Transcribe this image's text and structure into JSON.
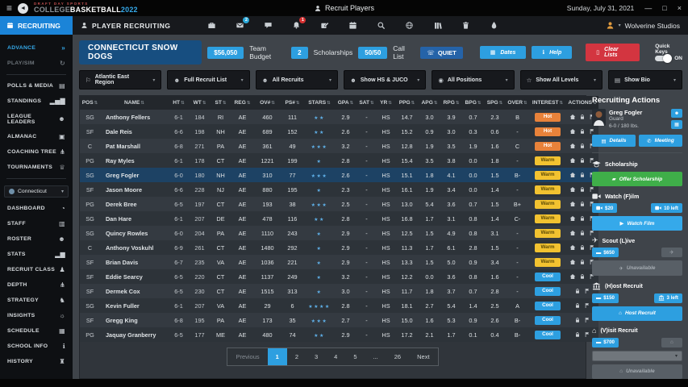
{
  "titlebar": {
    "logo_small": "DRAFT DAY SPORTS",
    "logo_college": "COLLEGE",
    "logo_basketball": "BASKETBALL",
    "logo_year": "2022",
    "page_title": "Recruit Players",
    "date": "Sunday, July 31, 2021"
  },
  "appbar": {
    "nav_label": "RECRUITING",
    "page_label": "PLAYER RECRUITING",
    "mail_badge": "2",
    "bell_badge": "1",
    "studio": "Wolverine Studios",
    "icon_names": [
      "briefcase-icon",
      "mail-icon",
      "chat-icon",
      "bell-icon",
      "compose-icon",
      "calendar-icon",
      "search-icon",
      "globe-icon",
      "books-icon",
      "trash-icon",
      "droplet-icon"
    ]
  },
  "sidebar": {
    "top_items": [
      {
        "id": "advance",
        "label": "ADVANCE",
        "glyph": "»",
        "state": "active"
      },
      {
        "id": "play-sim",
        "label": "PLAY/SIM",
        "glyph": "↻",
        "state": "disabled"
      },
      {
        "divider": true
      },
      {
        "id": "polls-media",
        "label": "POLLS & MEDIA",
        "glyph": "▤"
      },
      {
        "id": "standings",
        "label": "STANDINGS",
        "glyph": "▂▅▇"
      },
      {
        "id": "league-leaders",
        "label": "LEAGUE LEADERS",
        "glyph": "☻"
      },
      {
        "id": "almanac",
        "label": "ALMANAC",
        "glyph": "▣"
      },
      {
        "id": "coaching-tree",
        "label": "COACHING TREE",
        "glyph": "⋔"
      },
      {
        "id": "tournaments",
        "label": "TOURNAMENTS",
        "glyph": "♕"
      },
      {
        "divider": true
      }
    ],
    "team_select_label": "Connecticut",
    "bottom_items": [
      {
        "id": "dashboard",
        "label": "DASHBOARD",
        "glyph": "◔"
      },
      {
        "id": "staff",
        "label": "STAFF",
        "glyph": "▥"
      },
      {
        "id": "roster",
        "label": "ROSTER",
        "glyph": "☻"
      },
      {
        "id": "stats",
        "label": "STATS",
        "glyph": "▂▆"
      },
      {
        "id": "recruit-class",
        "label": "RECRUIT CLASS",
        "glyph": "♟"
      },
      {
        "id": "depth",
        "label": "DEPTH",
        "glyph": "⋔"
      },
      {
        "id": "strategy",
        "label": "STRATEGY",
        "glyph": "♞"
      },
      {
        "id": "insights",
        "label": "INSIGHTS",
        "glyph": "☼"
      },
      {
        "id": "schedule",
        "label": "SCHEDULE",
        "glyph": "▦"
      },
      {
        "id": "school-info",
        "label": "SCHOOL INFO",
        "glyph": "ℹ"
      },
      {
        "id": "history",
        "label": "HISTORY",
        "glyph": "♜"
      }
    ]
  },
  "team_header": {
    "team_name": "CONNECTICUT SNOW DOGS",
    "budget_value": "$56,050",
    "budget_label": "Team Budget",
    "scholarships_value": "2",
    "scholarships_label": "Scholarships",
    "call_list_value": "50/50",
    "call_list_label": "Call List",
    "quiet_button": "QUIET",
    "dates_button": "Dates",
    "help_button": "Help",
    "clear_lists_button": "Clear Lists",
    "quick_keys_label": "Quick Keys",
    "quick_keys_state": "ON"
  },
  "filters": [
    {
      "id": "region",
      "glyph": "⚐",
      "label": "Atlantic East Region"
    },
    {
      "id": "recruit-list",
      "glyph": "☻",
      "label": "Full Recruit List"
    },
    {
      "id": "recruit-type",
      "glyph": "☻",
      "label": "All Recruits"
    },
    {
      "id": "school-level",
      "glyph": "☻",
      "label": "Show HS & JUCO"
    },
    {
      "id": "positions",
      "glyph": "◉",
      "label": "All Positions"
    },
    {
      "id": "star-levels",
      "glyph": "☆",
      "label": "Show All Levels"
    },
    {
      "id": "bio",
      "glyph": "▤",
      "label": "Show Bio"
    }
  ],
  "table": {
    "columns": [
      "POS",
      "NAME",
      "HT",
      "WT",
      "ST",
      "REG",
      "OV#",
      "PS#",
      "STARS",
      "GPA",
      "SAT",
      "YR",
      "PPG",
      "APG",
      "RPG",
      "BPG",
      "SPG",
      "OVER",
      "INTEREST",
      "ACTIONS"
    ],
    "row_fields": [
      "pos",
      "name",
      "ht",
      "wt",
      "st",
      "reg",
      "ov",
      "ps",
      "stars",
      "gpa",
      "sat",
      "yr",
      "ppg",
      "apg",
      "rpg",
      "bpg",
      "spg",
      "over",
      "interest",
      "actions"
    ],
    "selected_index": 4,
    "rows": [
      [
        "SG",
        "Anthony Fellers",
        "6-1",
        "184",
        "RI",
        "AE",
        "460",
        "111",
        2,
        "2.9",
        "-",
        "HS",
        "14.7",
        "3.0",
        "3.9",
        "0.7",
        "2.3",
        "B",
        "Hot",
        3
      ],
      [
        "SF",
        "Dale Reis",
        "6-6",
        "198",
        "NH",
        "AE",
        "689",
        "152",
        2,
        "2.6",
        "-",
        "HS",
        "15.2",
        "0.9",
        "3.0",
        "0.3",
        "0.6",
        "-",
        "Hot",
        3
      ],
      [
        "C",
        "Pat Marshall",
        "6-8",
        "271",
        "PA",
        "AE",
        "361",
        "49",
        3,
        "3.2",
        "-",
        "HS",
        "12.8",
        "1.9",
        "3.5",
        "1.9",
        "1.6",
        "C",
        "Hot",
        3
      ],
      [
        "PG",
        "Ray Myles",
        "6-1",
        "178",
        "CT",
        "AE",
        "1221",
        "199",
        1,
        "2.8",
        "-",
        "HS",
        "15.4",
        "3.5",
        "3.8",
        "0.0",
        "1.8",
        "-",
        "Warm",
        3
      ],
      [
        "SG",
        "Greg Fogler",
        "6-0",
        "180",
        "NH",
        "AE",
        "310",
        "77",
        3,
        "2.6",
        "-",
        "HS",
        "15.1",
        "1.8",
        "4.1",
        "0.0",
        "1.5",
        "B-",
        "Warm",
        3
      ],
      [
        "SF",
        "Jason Moore",
        "6-6",
        "228",
        "NJ",
        "AE",
        "880",
        "195",
        1,
        "2.3",
        "-",
        "HS",
        "16.1",
        "1.9",
        "3.4",
        "0.0",
        "1.4",
        "-",
        "Warm",
        3
      ],
      [
        "PG",
        "Derek Bree",
        "6-5",
        "197",
        "CT",
        "AE",
        "193",
        "38",
        3,
        "2.5",
        "-",
        "HS",
        "13.0",
        "5.4",
        "3.6",
        "0.7",
        "1.5",
        "B+",
        "Warm",
        3
      ],
      [
        "SG",
        "Dan Hare",
        "6-1",
        "207",
        "DE",
        "AE",
        "478",
        "116",
        2,
        "2.8",
        "-",
        "HS",
        "16.8",
        "1.7",
        "3.1",
        "0.8",
        "1.4",
        "C-",
        "Warm",
        3
      ],
      [
        "SG",
        "Quincy Rowles",
        "6-0",
        "204",
        "PA",
        "AE",
        "1110",
        "243",
        1,
        "2.9",
        "-",
        "HS",
        "12.5",
        "1.5",
        "4.9",
        "0.8",
        "3.1",
        "-",
        "Warm",
        3
      ],
      [
        "C",
        "Anthony Voskuhl",
        "6-9",
        "261",
        "CT",
        "AE",
        "1480",
        "292",
        1,
        "2.9",
        "-",
        "HS",
        "11.3",
        "1.7",
        "6.1",
        "2.8",
        "1.5",
        "-",
        "Warm",
        3
      ],
      [
        "SF",
        "Brian Davis",
        "6-7",
        "235",
        "VA",
        "AE",
        "1036",
        "221",
        1,
        "2.9",
        "-",
        "HS",
        "13.3",
        "1.5",
        "5.0",
        "0.9",
        "3.4",
        "-",
        "Warm",
        3
      ],
      [
        "SF",
        "Eddie Searcy",
        "6-5",
        "220",
        "CT",
        "AE",
        "1137",
        "249",
        1,
        "3.2",
        "-",
        "HS",
        "12.2",
        "0.0",
        "3.6",
        "0.8",
        "1.6",
        "-",
        "Cool",
        3
      ],
      [
        "SF",
        "Dermek Cox",
        "6-5",
        "230",
        "CT",
        "AE",
        "1515",
        "313",
        1,
        "3.0",
        "-",
        "HS",
        "11.7",
        "1.8",
        "3.7",
        "0.7",
        "2.8",
        "-",
        "Cool",
        2
      ],
      [
        "SG",
        "Kevin Fuller",
        "6-1",
        "207",
        "VA",
        "AE",
        "29",
        "6",
        4,
        "2.8",
        "-",
        "HS",
        "18.1",
        "2.7",
        "5.4",
        "1.4",
        "2.5",
        "A",
        "Cool",
        2
      ],
      [
        "SF",
        "Gregg King",
        "6-8",
        "195",
        "PA",
        "AE",
        "173",
        "35",
        3,
        "2.7",
        "-",
        "HS",
        "15.0",
        "1.6",
        "5.3",
        "0.9",
        "2.6",
        "B-",
        "Cool",
        2
      ],
      [
        "PG",
        "Jaquay Granberry",
        "6-5",
        "177",
        "ME",
        "AE",
        "480",
        "74",
        2,
        "2.9",
        "-",
        "HS",
        "17.2",
        "2.1",
        "1.7",
        "0.1",
        "0.4",
        "B-",
        "Cool",
        2
      ]
    ],
    "interest_colors": {
      "Hot": "#e8823a",
      "Warm": "#f2c230",
      "Cool": "#2d9fe0"
    }
  },
  "pagination": {
    "previous": "Previous",
    "pages": [
      "1",
      "2",
      "3",
      "4",
      "5",
      "...",
      "26"
    ],
    "active_page": "1",
    "next": "Next"
  },
  "actions_panel": {
    "title": "Recruiting Actions",
    "player": {
      "name": "Greg Fogler",
      "position": "Guard",
      "size": "6-0 / 180 lbs."
    },
    "details_button": "Details",
    "meeting_button": "Meeting",
    "scholarship": {
      "label": "Scholarship",
      "offer_button": "Offer Scholarship"
    },
    "film": {
      "label": "Watch (F)ilm",
      "cost": "$20",
      "remaining": "10 left",
      "watch_button": "Watch Film"
    },
    "scout": {
      "label": "Scout (L)ive",
      "cost": "$650",
      "button": "Unavailable"
    },
    "host": {
      "label": "(H)ost Recruit",
      "cost": "$150",
      "remaining": "3 left",
      "button": "Host Recruit"
    },
    "visit": {
      "label": "(V)isit Recruit",
      "cost": "$700",
      "button": "Unavailable"
    }
  }
}
